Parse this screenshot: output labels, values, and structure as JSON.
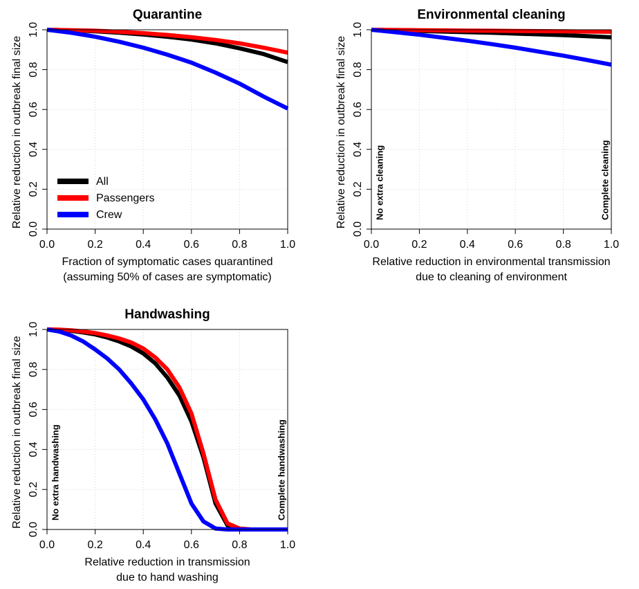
{
  "chart_data": [
    {
      "type": "line",
      "title": "Quarantine",
      "xlabel": "Fraction of symptomatic cases quarantined",
      "xlabel2": "(assuming 50% of cases are symptomatic)",
      "ylabel": "Relative reduction in outbreak final size",
      "xlim": [
        0,
        1
      ],
      "ylim": [
        0,
        1
      ],
      "xticks": [
        "0.0",
        "0.2",
        "0.4",
        "0.6",
        "0.8",
        "1.0"
      ],
      "yticks": [
        "0.0",
        "0.2",
        "0.4",
        "0.6",
        "0.8",
        "1.0"
      ],
      "grid": true,
      "legend": "bottom-left",
      "annotations": [],
      "series": [
        {
          "name": "All",
          "color": "#000000",
          "x": [
            0,
            0.1,
            0.2,
            0.3,
            0.4,
            0.5,
            0.6,
            0.7,
            0.8,
            0.9,
            1.0
          ],
          "y": [
            1.0,
            0.997,
            0.992,
            0.985,
            0.976,
            0.965,
            0.951,
            0.932,
            0.907,
            0.878,
            0.838
          ]
        },
        {
          "name": "Passengers",
          "color": "#ff0000",
          "x": [
            0,
            0.1,
            0.2,
            0.3,
            0.4,
            0.5,
            0.6,
            0.7,
            0.8,
            0.9,
            1.0
          ],
          "y": [
            1.0,
            0.998,
            0.995,
            0.99,
            0.983,
            0.974,
            0.963,
            0.949,
            0.932,
            0.91,
            0.885
          ]
        },
        {
          "name": "Crew",
          "color": "#0000ff",
          "x": [
            0,
            0.1,
            0.2,
            0.3,
            0.4,
            0.5,
            0.6,
            0.7,
            0.8,
            0.9,
            1.0
          ],
          "y": [
            1.0,
            0.985,
            0.965,
            0.94,
            0.91,
            0.875,
            0.835,
            0.785,
            0.73,
            0.665,
            0.605
          ]
        }
      ]
    },
    {
      "type": "line",
      "title": "Environmental cleaning",
      "xlabel": "Relative reduction in environmental transmission",
      "xlabel2": "due to cleaning of environment",
      "ylabel": "Relative reduction in outbreak final size",
      "xlim": [
        0,
        1
      ],
      "ylim": [
        0,
        1
      ],
      "xticks": [
        "0.0",
        "0.2",
        "0.4",
        "0.6",
        "0.8",
        "1.0"
      ],
      "yticks": [
        "0.0",
        "0.2",
        "0.4",
        "0.6",
        "0.8",
        "1.0"
      ],
      "grid": true,
      "legend": "none",
      "annotations": [
        "No extra cleaning",
        "Complete cleaning"
      ],
      "series": [
        {
          "name": "All",
          "color": "#000000",
          "x": [
            0,
            0.1,
            0.2,
            0.3,
            0.4,
            0.5,
            0.6,
            0.7,
            0.8,
            0.9,
            1.0
          ],
          "y": [
            1.0,
            0.997,
            0.994,
            0.991,
            0.988,
            0.985,
            0.981,
            0.977,
            0.973,
            0.968,
            0.962
          ]
        },
        {
          "name": "Passengers",
          "color": "#ff0000",
          "x": [
            0,
            0.1,
            0.2,
            0.3,
            0.4,
            0.5,
            0.6,
            0.7,
            0.8,
            0.9,
            1.0
          ],
          "y": [
            1.0,
            0.999,
            0.998,
            0.997,
            0.996,
            0.995,
            0.994,
            0.993,
            0.992,
            0.991,
            0.99
          ]
        },
        {
          "name": "Crew",
          "color": "#0000ff",
          "x": [
            0,
            0.1,
            0.2,
            0.3,
            0.4,
            0.5,
            0.6,
            0.7,
            0.8,
            0.9,
            1.0
          ],
          "y": [
            1.0,
            0.988,
            0.975,
            0.96,
            0.945,
            0.928,
            0.91,
            0.89,
            0.87,
            0.848,
            0.825
          ]
        }
      ]
    },
    {
      "type": "line",
      "title": "Handwashing",
      "xlabel": "Relative reduction in transmission",
      "xlabel2": "due to hand washing",
      "ylabel": "Relative reduction in outbreak final size",
      "xlim": [
        0,
        1
      ],
      "ylim": [
        0,
        1
      ],
      "xticks": [
        "0.0",
        "0.2",
        "0.4",
        "0.6",
        "0.8",
        "1.0"
      ],
      "yticks": [
        "0.0",
        "0.2",
        "0.4",
        "0.6",
        "0.8",
        "1.0"
      ],
      "grid": true,
      "legend": "none",
      "annotations": [
        "No extra handwashing",
        "Complete handwashing"
      ],
      "series": [
        {
          "name": "All",
          "color": "#000000",
          "x": [
            0,
            0.05,
            0.1,
            0.15,
            0.2,
            0.25,
            0.3,
            0.35,
            0.4,
            0.45,
            0.5,
            0.55,
            0.6,
            0.65,
            0.7,
            0.75,
            0.8,
            0.85,
            0.9,
            0.95,
            1.0
          ],
          "y": [
            1.0,
            0.998,
            0.993,
            0.985,
            0.975,
            0.96,
            0.94,
            0.915,
            0.88,
            0.83,
            0.76,
            0.67,
            0.54,
            0.36,
            0.13,
            0.02,
            0.0,
            0.0,
            0.0,
            0.0,
            0.0
          ]
        },
        {
          "name": "Passengers",
          "color": "#ff0000",
          "x": [
            0,
            0.05,
            0.1,
            0.15,
            0.2,
            0.25,
            0.3,
            0.35,
            0.4,
            0.45,
            0.5,
            0.55,
            0.6,
            0.65,
            0.7,
            0.75,
            0.8,
            0.85,
            0.9,
            0.95,
            1.0
          ],
          "y": [
            1.0,
            0.999,
            0.996,
            0.99,
            0.982,
            0.97,
            0.955,
            0.935,
            0.905,
            0.86,
            0.8,
            0.71,
            0.58,
            0.38,
            0.15,
            0.03,
            0.005,
            0.0,
            0.0,
            0.0,
            0.0
          ]
        },
        {
          "name": "Crew",
          "color": "#0000ff",
          "x": [
            0,
            0.05,
            0.1,
            0.15,
            0.2,
            0.25,
            0.3,
            0.35,
            0.4,
            0.45,
            0.5,
            0.55,
            0.6,
            0.65,
            0.7,
            0.75,
            0.8,
            0.85,
            0.9,
            0.95,
            1.0
          ],
          "y": [
            1.0,
            0.99,
            0.97,
            0.94,
            0.9,
            0.855,
            0.8,
            0.73,
            0.65,
            0.55,
            0.43,
            0.28,
            0.13,
            0.04,
            0.005,
            0.0,
            0.0,
            0.0,
            0.0,
            0.0,
            0.0
          ]
        }
      ]
    }
  ]
}
